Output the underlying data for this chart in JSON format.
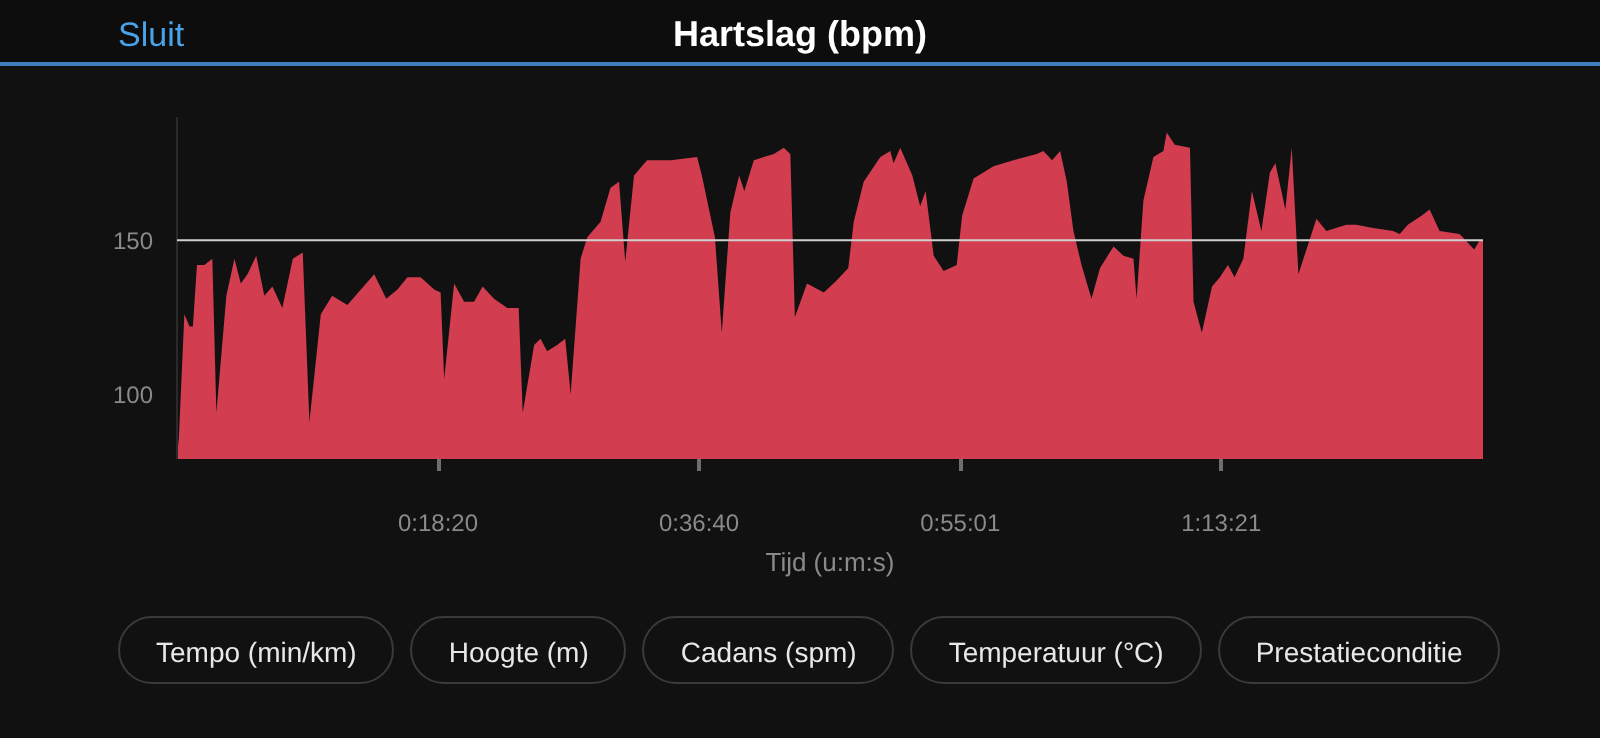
{
  "chart_data": {
    "type": "area",
    "title": "Hartslag (bpm)",
    "xlabel": "Tijd (u:m:s)",
    "annotations": [
      "Sluit",
      "Tempo (min/km)",
      "Hoogte (m)",
      "Cadans (spm)",
      "Temperatuur (°C)",
      "Prestatieconditie"
    ],
    "x": [
      0,
      8,
      31,
      53,
      67,
      84,
      115,
      149,
      166,
      208,
      242,
      269,
      297,
      334,
      368,
      402,
      444,
      488,
      530,
      558,
      606,
      654,
      718,
      775,
      831,
      882,
      929,
      971,
      1027,
      1084,
      1111,
      1126,
      1168,
      1210,
      1252,
      1288,
      1336,
      1392,
      1440,
      1457,
      1505,
      1532,
      1560,
      1602,
      1636,
      1659,
      1701,
      1729,
      1785,
      1827,
      1863,
      1889,
      1926,
      1981,
      2080,
      2192,
      2212,
      2267,
      2296,
      2332,
      2369,
      2391,
      2431,
      2515,
      2557,
      2585,
      2604,
      2655,
      2726,
      2781,
      2829,
      2852,
      2894,
      2964,
      3006,
      3020,
      3048,
      3099,
      3132,
      3155,
      3189,
      3231,
      3286,
      3309,
      3357,
      3441,
      3525,
      3623,
      3651,
      3688,
      3722,
      3750,
      3778,
      3812,
      3854,
      3890,
      3947,
      3989,
      4031,
      4044,
      4073,
      4115,
      4157,
      4171,
      4205,
      4269,
      4284,
      4319,
      4362,
      4395,
      4429,
      4457,
      4494,
      4530,
      4570,
      4606,
      4629,
      4671,
      4698,
      4726,
      4760,
      4802,
      4844,
      4928,
      4970,
      5041,
      5125,
      5153,
      5187,
      5246,
      5279,
      5321,
      5405,
      5467,
      5490,
      5504
    ],
    "series": [
      {
        "color": "#d23d50",
        "values": [
          80,
          86,
          126,
          122,
          122,
          142,
          142,
          144,
          94,
          132,
          144,
          136,
          139,
          145,
          132,
          135,
          128,
          144,
          146,
          91,
          126,
          132,
          129,
          134,
          139,
          131,
          134,
          138,
          138,
          134,
          133,
          105,
          136,
          130,
          130,
          135,
          131,
          128,
          128,
          94,
          116,
          118,
          114,
          116,
          118,
          100,
          144,
          151,
          156,
          167,
          169,
          143,
          171,
          176,
          176,
          177,
          171,
          151,
          120,
          159,
          171,
          166,
          176,
          178,
          180,
          178,
          125,
          136,
          133,
          137,
          141,
          156,
          169,
          177,
          179,
          175,
          180,
          171,
          161,
          166,
          145,
          140,
          142,
          158,
          170,
          174,
          176,
          178,
          179,
          176,
          179,
          169,
          153,
          142,
          131,
          141,
          148,
          145,
          144,
          131,
          163,
          177,
          179,
          185,
          181,
          180,
          130,
          120,
          135,
          138,
          142,
          138,
          144,
          166,
          153,
          172,
          175,
          160,
          180,
          139,
          147,
          157,
          153,
          155,
          155,
          154,
          153,
          152,
          155,
          158,
          160,
          153,
          152,
          147,
          150,
          150
        ]
      }
    ],
    "xlim": [
      0,
      5504
    ],
    "ylim": [
      79,
      190
    ],
    "xticks": [
      {
        "value": 1100,
        "label": "0:18:20"
      },
      {
        "value": 2200,
        "label": "0:36:40"
      },
      {
        "value": 3301,
        "label": "0:55:01"
      },
      {
        "value": 4401,
        "label": "1:13:21"
      }
    ],
    "yticks": [
      100,
      150
    ],
    "ref_lines": [
      {
        "axis": "y",
        "value": 150,
        "label": null,
        "color": "#cfcfcf"
      }
    ]
  }
}
